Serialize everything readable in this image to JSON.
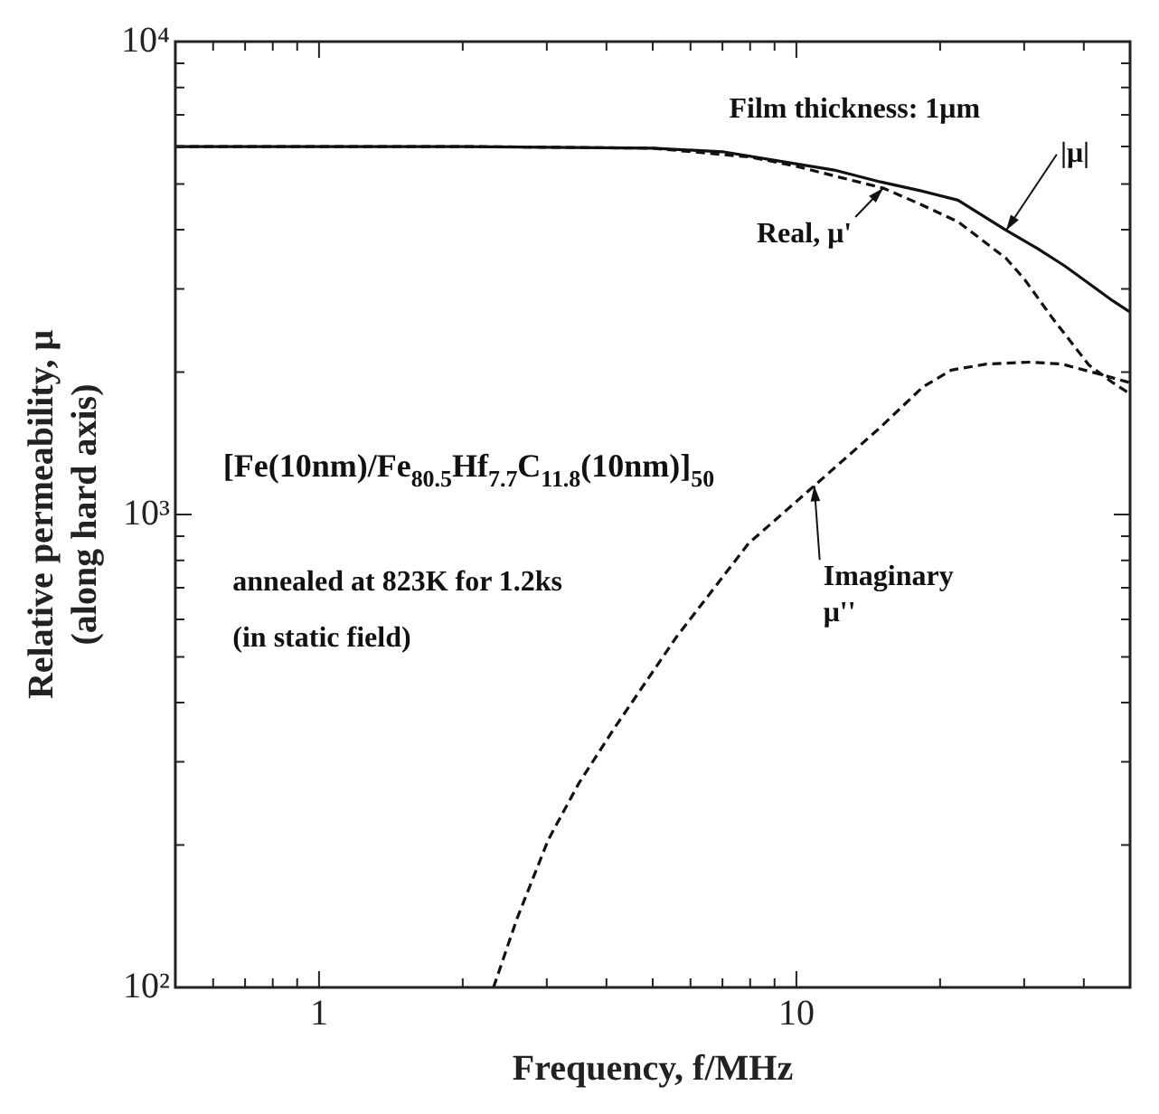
{
  "chart_data": {
    "type": "line",
    "xlabel": "Frequency, f/MHz",
    "ylabel": "Relative permeability, μ\n(along hard axis)",
    "log": "xy",
    "grid": false,
    "legend": false,
    "xlim": [
      0.5,
      50
    ],
    "ylim": [
      100,
      10000
    ],
    "xticks": [
      {
        "value": 0.6,
        "label": null
      },
      {
        "value": 0.7,
        "label": null
      },
      {
        "value": 0.8,
        "label": null
      },
      {
        "value": 0.9,
        "label": null
      },
      1,
      {
        "value": 2,
        "label": null
      },
      {
        "value": 3,
        "label": null
      },
      {
        "value": 4,
        "label": null
      },
      {
        "value": 5,
        "label": null
      },
      {
        "value": 6,
        "label": null
      },
      {
        "value": 7,
        "label": null
      },
      {
        "value": 8,
        "label": null
      },
      {
        "value": 9,
        "label": null
      },
      10,
      {
        "value": 20,
        "label": null
      },
      {
        "value": 30,
        "label": null
      },
      {
        "value": 40,
        "label": null
      }
    ],
    "yticks": [
      {
        "value": 100,
        "label": "10²"
      },
      {
        "value": 200,
        "label": null
      },
      {
        "value": 300,
        "label": null
      },
      {
        "value": 400,
        "label": null
      },
      {
        "value": 500,
        "label": null
      },
      {
        "value": 600,
        "label": null
      },
      {
        "value": 700,
        "label": null
      },
      {
        "value": 800,
        "label": null
      },
      {
        "value": 900,
        "label": null
      },
      {
        "value": 1000,
        "label": "10³"
      },
      {
        "value": 2000,
        "label": null
      },
      {
        "value": 3000,
        "label": null
      },
      {
        "value": 4000,
        "label": null
      },
      {
        "value": 5000,
        "label": null
      },
      {
        "value": 6000,
        "label": null
      },
      {
        "value": 7000,
        "label": null
      },
      {
        "value": 8000,
        "label": null
      },
      {
        "value": 9000,
        "label": null
      },
      {
        "value": 10000,
        "label": "10⁴"
      }
    ],
    "series": [
      {
        "name": "|μ|",
        "color": "#111111",
        "line_style": "solid",
        "x": [
          0.5,
          1,
          2,
          3,
          5,
          7,
          8.9,
          12,
          15,
          18,
          21.8,
          27.5,
          32,
          36.4,
          41,
          46,
          50
        ],
        "values": [
          6000,
          6000,
          6000,
          5980,
          5950,
          5850,
          5620,
          5350,
          5050,
          4850,
          4620,
          3990,
          3650,
          3360,
          3080,
          2830,
          2680
        ]
      },
      {
        "name": "Real, μ'",
        "color": "#111111",
        "line_style": "dashed",
        "x": [
          0.5,
          1,
          2,
          3,
          5,
          8,
          10,
          12,
          15.2,
          18,
          21.8,
          27.5,
          30,
          34.5,
          41,
          46,
          50
        ],
        "values": [
          6000,
          6000,
          6000,
          5980,
          5950,
          5700,
          5450,
          5200,
          4900,
          4550,
          4160,
          3480,
          3150,
          2590,
          2070,
          1900,
          1800
        ]
      },
      {
        "name": "Imaginary\nμ''",
        "color": "#111111",
        "line_style": "dashed",
        "x": [
          2.32,
          2.6,
          3.02,
          3.5,
          4.13,
          5.6,
          7.95,
          10.9,
          14.9,
          18.4,
          21.1,
          25,
          31,
          36,
          42.4,
          50
        ],
        "values": [
          100,
          140,
          205,
          270,
          350,
          550,
          870,
          1150,
          1520,
          1860,
          2020,
          2080,
          2100,
          2080,
          1990,
          1900
        ]
      }
    ],
    "annotations": [
      "Film thickness: 1μm",
      "[Fe(10nm)/Fe$_{80.5}$Hf$_{7.7}$C$_{11.8}$(10nm)]$_{50}$",
      "annealed at 823K for 1.2ks",
      "(in static field)"
    ]
  }
}
